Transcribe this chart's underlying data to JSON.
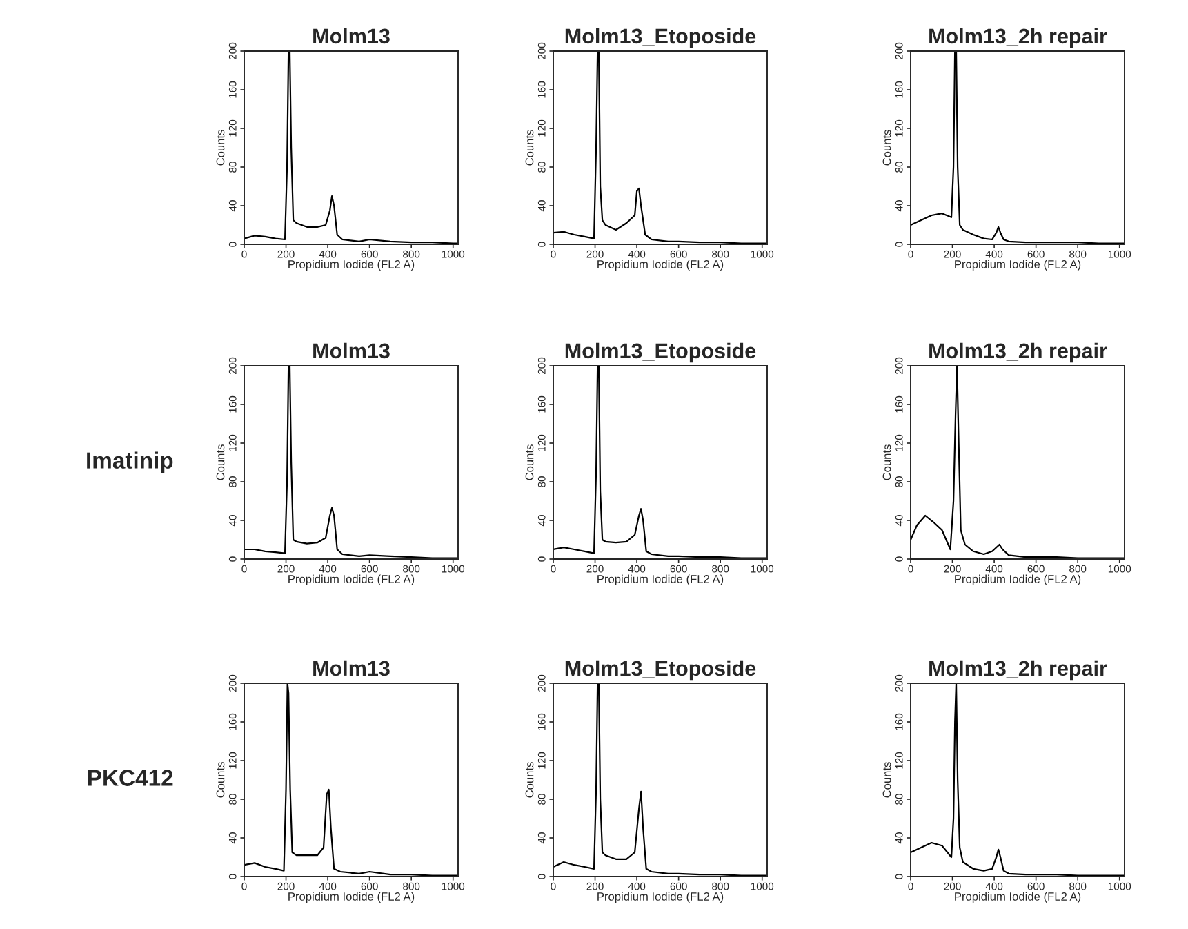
{
  "chart_data": [
    {
      "type": "line",
      "title": "Molm13",
      "xlabel": "Propidium Iodide (FL2 A)",
      "ylabel": "Counts",
      "xlim": [
        0,
        1024
      ],
      "ylim": [
        0,
        200
      ],
      "xticks": [
        0,
        200,
        400,
        600,
        800,
        1000
      ],
      "yticks": [
        0,
        40,
        80,
        120,
        160,
        200
      ],
      "grid": false,
      "color": "#000000",
      "x": [
        0,
        50,
        100,
        150,
        195,
        205,
        212,
        218,
        225,
        235,
        250,
        300,
        350,
        390,
        410,
        420,
        430,
        445,
        470,
        550,
        600,
        700,
        800,
        900,
        1000,
        1020
      ],
      "values": [
        6,
        9,
        8,
        6,
        5,
        80,
        200,
        200,
        100,
        25,
        22,
        18,
        18,
        20,
        35,
        50,
        40,
        10,
        5,
        3,
        5,
        3,
        2,
        2,
        1,
        1
      ]
    },
    {
      "type": "line",
      "title": "Molm13_Etoposide",
      "xlabel": "Propidium Iodide (FL2 A)",
      "ylabel": "Counts",
      "xlim": [
        0,
        1024
      ],
      "ylim": [
        0,
        200
      ],
      "xticks": [
        0,
        200,
        400,
        600,
        800,
        1000
      ],
      "yticks": [
        0,
        40,
        80,
        120,
        160,
        200
      ],
      "grid": false,
      "color": "#000000",
      "x": [
        0,
        50,
        100,
        150,
        195,
        205,
        212,
        218,
        225,
        235,
        250,
        300,
        350,
        390,
        400,
        410,
        420,
        440,
        470,
        550,
        600,
        700,
        800,
        900,
        1000,
        1020
      ],
      "values": [
        12,
        13,
        10,
        8,
        6,
        100,
        200,
        200,
        60,
        25,
        20,
        15,
        22,
        30,
        55,
        58,
        40,
        10,
        5,
        3,
        3,
        2,
        2,
        1,
        1,
        1
      ]
    },
    {
      "type": "line",
      "title": "Molm13_2h repair",
      "xlabel": "Propidium Iodide (FL2 A)",
      "ylabel": "Counts",
      "xlim": [
        0,
        1024
      ],
      "ylim": [
        0,
        200
      ],
      "xticks": [
        0,
        200,
        400,
        600,
        800,
        1000
      ],
      "yticks": [
        0,
        40,
        80,
        120,
        160,
        200
      ],
      "grid": false,
      "color": "#000000",
      "x": [
        0,
        50,
        100,
        150,
        195,
        205,
        212,
        218,
        225,
        235,
        250,
        300,
        350,
        390,
        410,
        420,
        430,
        445,
        470,
        550,
        600,
        700,
        800,
        900,
        1000,
        1020
      ],
      "values": [
        20,
        25,
        30,
        32,
        28,
        80,
        200,
        200,
        80,
        20,
        15,
        10,
        6,
        5,
        12,
        18,
        12,
        5,
        3,
        2,
        2,
        2,
        2,
        1,
        1,
        1
      ]
    },
    {
      "type": "line",
      "title": "Molm13",
      "xlabel": "Propidium Iodide (FL2 A)",
      "ylabel": "Counts",
      "annotations": [
        "Imatinip"
      ],
      "xlim": [
        0,
        1024
      ],
      "ylim": [
        0,
        200
      ],
      "xticks": [
        0,
        200,
        400,
        600,
        800,
        1000
      ],
      "yticks": [
        0,
        40,
        80,
        120,
        160,
        200
      ],
      "grid": false,
      "color": "#000000",
      "x": [
        0,
        50,
        100,
        150,
        195,
        205,
        212,
        218,
        225,
        235,
        250,
        300,
        350,
        390,
        410,
        420,
        430,
        445,
        470,
        550,
        600,
        700,
        800,
        900,
        1000,
        1020
      ],
      "values": [
        10,
        10,
        8,
        7,
        6,
        80,
        200,
        200,
        100,
        20,
        18,
        16,
        17,
        22,
        45,
        53,
        45,
        10,
        5,
        3,
        4,
        3,
        2,
        1,
        1,
        1
      ]
    },
    {
      "type": "line",
      "title": "Molm13_Etoposide",
      "xlabel": "Propidium Iodide (FL2 A)",
      "ylabel": "Counts",
      "xlim": [
        0,
        1024
      ],
      "ylim": [
        0,
        200
      ],
      "xticks": [
        0,
        200,
        400,
        600,
        800,
        1000
      ],
      "yticks": [
        0,
        40,
        80,
        120,
        160,
        200
      ],
      "grid": false,
      "color": "#000000",
      "x": [
        0,
        50,
        100,
        150,
        195,
        205,
        212,
        218,
        225,
        235,
        250,
        300,
        350,
        390,
        410,
        420,
        430,
        445,
        470,
        550,
        600,
        700,
        800,
        900,
        1000,
        1020
      ],
      "values": [
        10,
        12,
        10,
        8,
        6,
        90,
        200,
        200,
        70,
        20,
        18,
        17,
        18,
        25,
        45,
        52,
        40,
        8,
        5,
        3,
        3,
        2,
        2,
        1,
        1,
        1
      ]
    },
    {
      "type": "line",
      "title": "Molm13_2h repair",
      "xlabel": "Propidium Iodide (FL2 A)",
      "ylabel": "Counts",
      "xlim": [
        0,
        1024
      ],
      "ylim": [
        0,
        200
      ],
      "xticks": [
        0,
        200,
        400,
        600,
        800,
        1000
      ],
      "yticks": [
        0,
        40,
        80,
        120,
        160,
        200
      ],
      "grid": false,
      "color": "#000000",
      "x": [
        0,
        30,
        70,
        110,
        150,
        190,
        205,
        215,
        222,
        230,
        240,
        260,
        300,
        350,
        390,
        410,
        425,
        440,
        470,
        550,
        600,
        700,
        800,
        900,
        1000,
        1020
      ],
      "values": [
        20,
        35,
        45,
        38,
        30,
        10,
        60,
        150,
        200,
        120,
        30,
        15,
        8,
        5,
        8,
        12,
        15,
        10,
        4,
        2,
        2,
        2,
        1,
        1,
        1,
        1
      ]
    },
    {
      "type": "line",
      "title": "Molm13",
      "xlabel": "Propidium Iodide (FL2 A)",
      "ylabel": "Counts",
      "annotations": [
        "PKC412"
      ],
      "xlim": [
        0,
        1024
      ],
      "ylim": [
        0,
        200
      ],
      "xticks": [
        0,
        200,
        400,
        600,
        800,
        1000
      ],
      "yticks": [
        0,
        40,
        80,
        120,
        160,
        200
      ],
      "grid": false,
      "color": "#000000",
      "x": [
        0,
        50,
        100,
        150,
        190,
        200,
        207,
        212,
        220,
        230,
        250,
        300,
        350,
        380,
        395,
        405,
        415,
        430,
        460,
        550,
        600,
        700,
        800,
        900,
        1000,
        1020
      ],
      "values": [
        12,
        14,
        10,
        8,
        6,
        90,
        200,
        190,
        90,
        25,
        22,
        22,
        22,
        30,
        85,
        90,
        50,
        8,
        5,
        3,
        5,
        2,
        2,
        1,
        1,
        1
      ]
    },
    {
      "type": "line",
      "title": "Molm13_Etoposide",
      "xlabel": "Propidium Iodide (FL2 A)",
      "ylabel": "Counts",
      "xlim": [
        0,
        1024
      ],
      "ylim": [
        0,
        200
      ],
      "xticks": [
        0,
        200,
        400,
        600,
        800,
        1000
      ],
      "yticks": [
        0,
        40,
        80,
        120,
        160,
        200
      ],
      "grid": false,
      "color": "#000000",
      "x": [
        0,
        50,
        100,
        150,
        195,
        205,
        212,
        218,
        225,
        235,
        250,
        300,
        350,
        390,
        410,
        420,
        430,
        445,
        470,
        550,
        600,
        700,
        800,
        900,
        1000,
        1020
      ],
      "values": [
        10,
        15,
        12,
        10,
        8,
        90,
        200,
        200,
        80,
        25,
        22,
        18,
        18,
        25,
        70,
        88,
        50,
        8,
        5,
        3,
        3,
        2,
        2,
        1,
        1,
        1
      ]
    },
    {
      "type": "line",
      "title": "Molm13_2h repair",
      "xlabel": "Propidium Iodide (FL2 A)",
      "ylabel": "Counts",
      "xlim": [
        0,
        1024
      ],
      "ylim": [
        0,
        200
      ],
      "xticks": [
        0,
        200,
        400,
        600,
        800,
        1000
      ],
      "yticks": [
        0,
        40,
        80,
        120,
        160,
        200
      ],
      "grid": false,
      "color": "#000000",
      "x": [
        0,
        50,
        100,
        150,
        195,
        205,
        212,
        218,
        225,
        235,
        250,
        300,
        350,
        390,
        410,
        420,
        430,
        445,
        470,
        550,
        600,
        700,
        800,
        900,
        1000,
        1020
      ],
      "values": [
        25,
        30,
        35,
        32,
        20,
        60,
        160,
        200,
        100,
        30,
        15,
        8,
        6,
        8,
        20,
        28,
        20,
        6,
        3,
        2,
        2,
        2,
        1,
        1,
        1,
        1
      ]
    }
  ]
}
